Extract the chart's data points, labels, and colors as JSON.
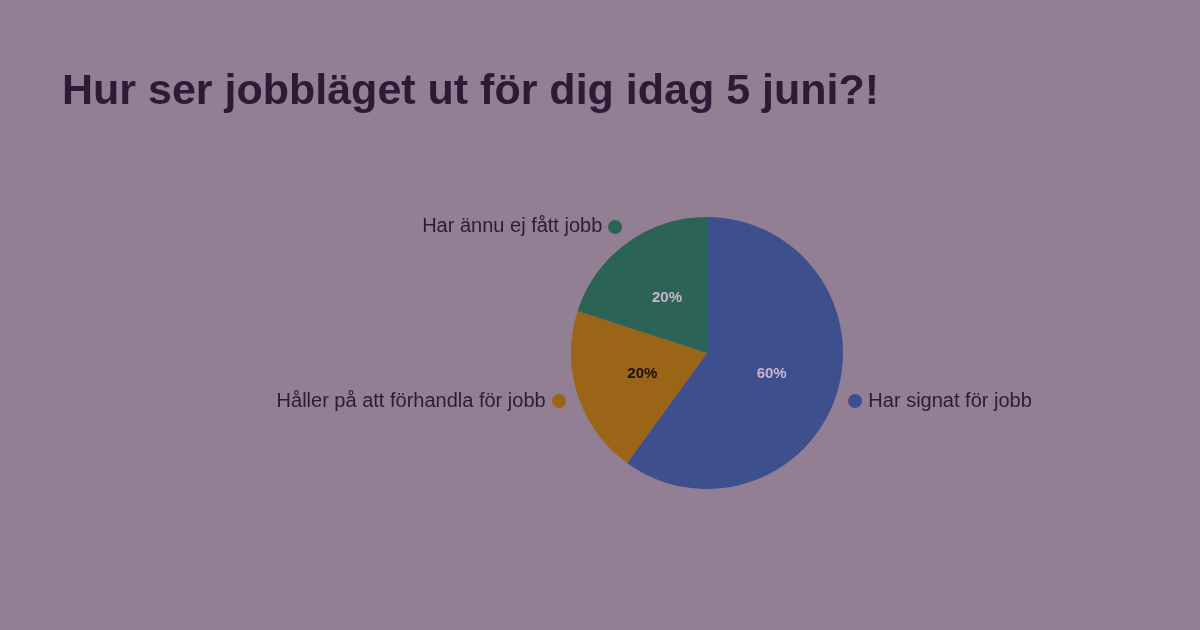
{
  "chart_data": {
    "type": "pie",
    "title": "Hur ser jobbläget ut för dig idag 5 juni?!",
    "categories": [
      "Har signat för jobb",
      "Håller på att förhandla för jobb",
      "Har ännu ej fått jobb"
    ],
    "values": [
      60,
      20,
      20
    ],
    "colors": [
      "#3e4f8e",
      "#9a6516",
      "#2b6357"
    ],
    "value_labels": [
      "60%",
      "20%",
      "20%"
    ],
    "legend": "left"
  }
}
